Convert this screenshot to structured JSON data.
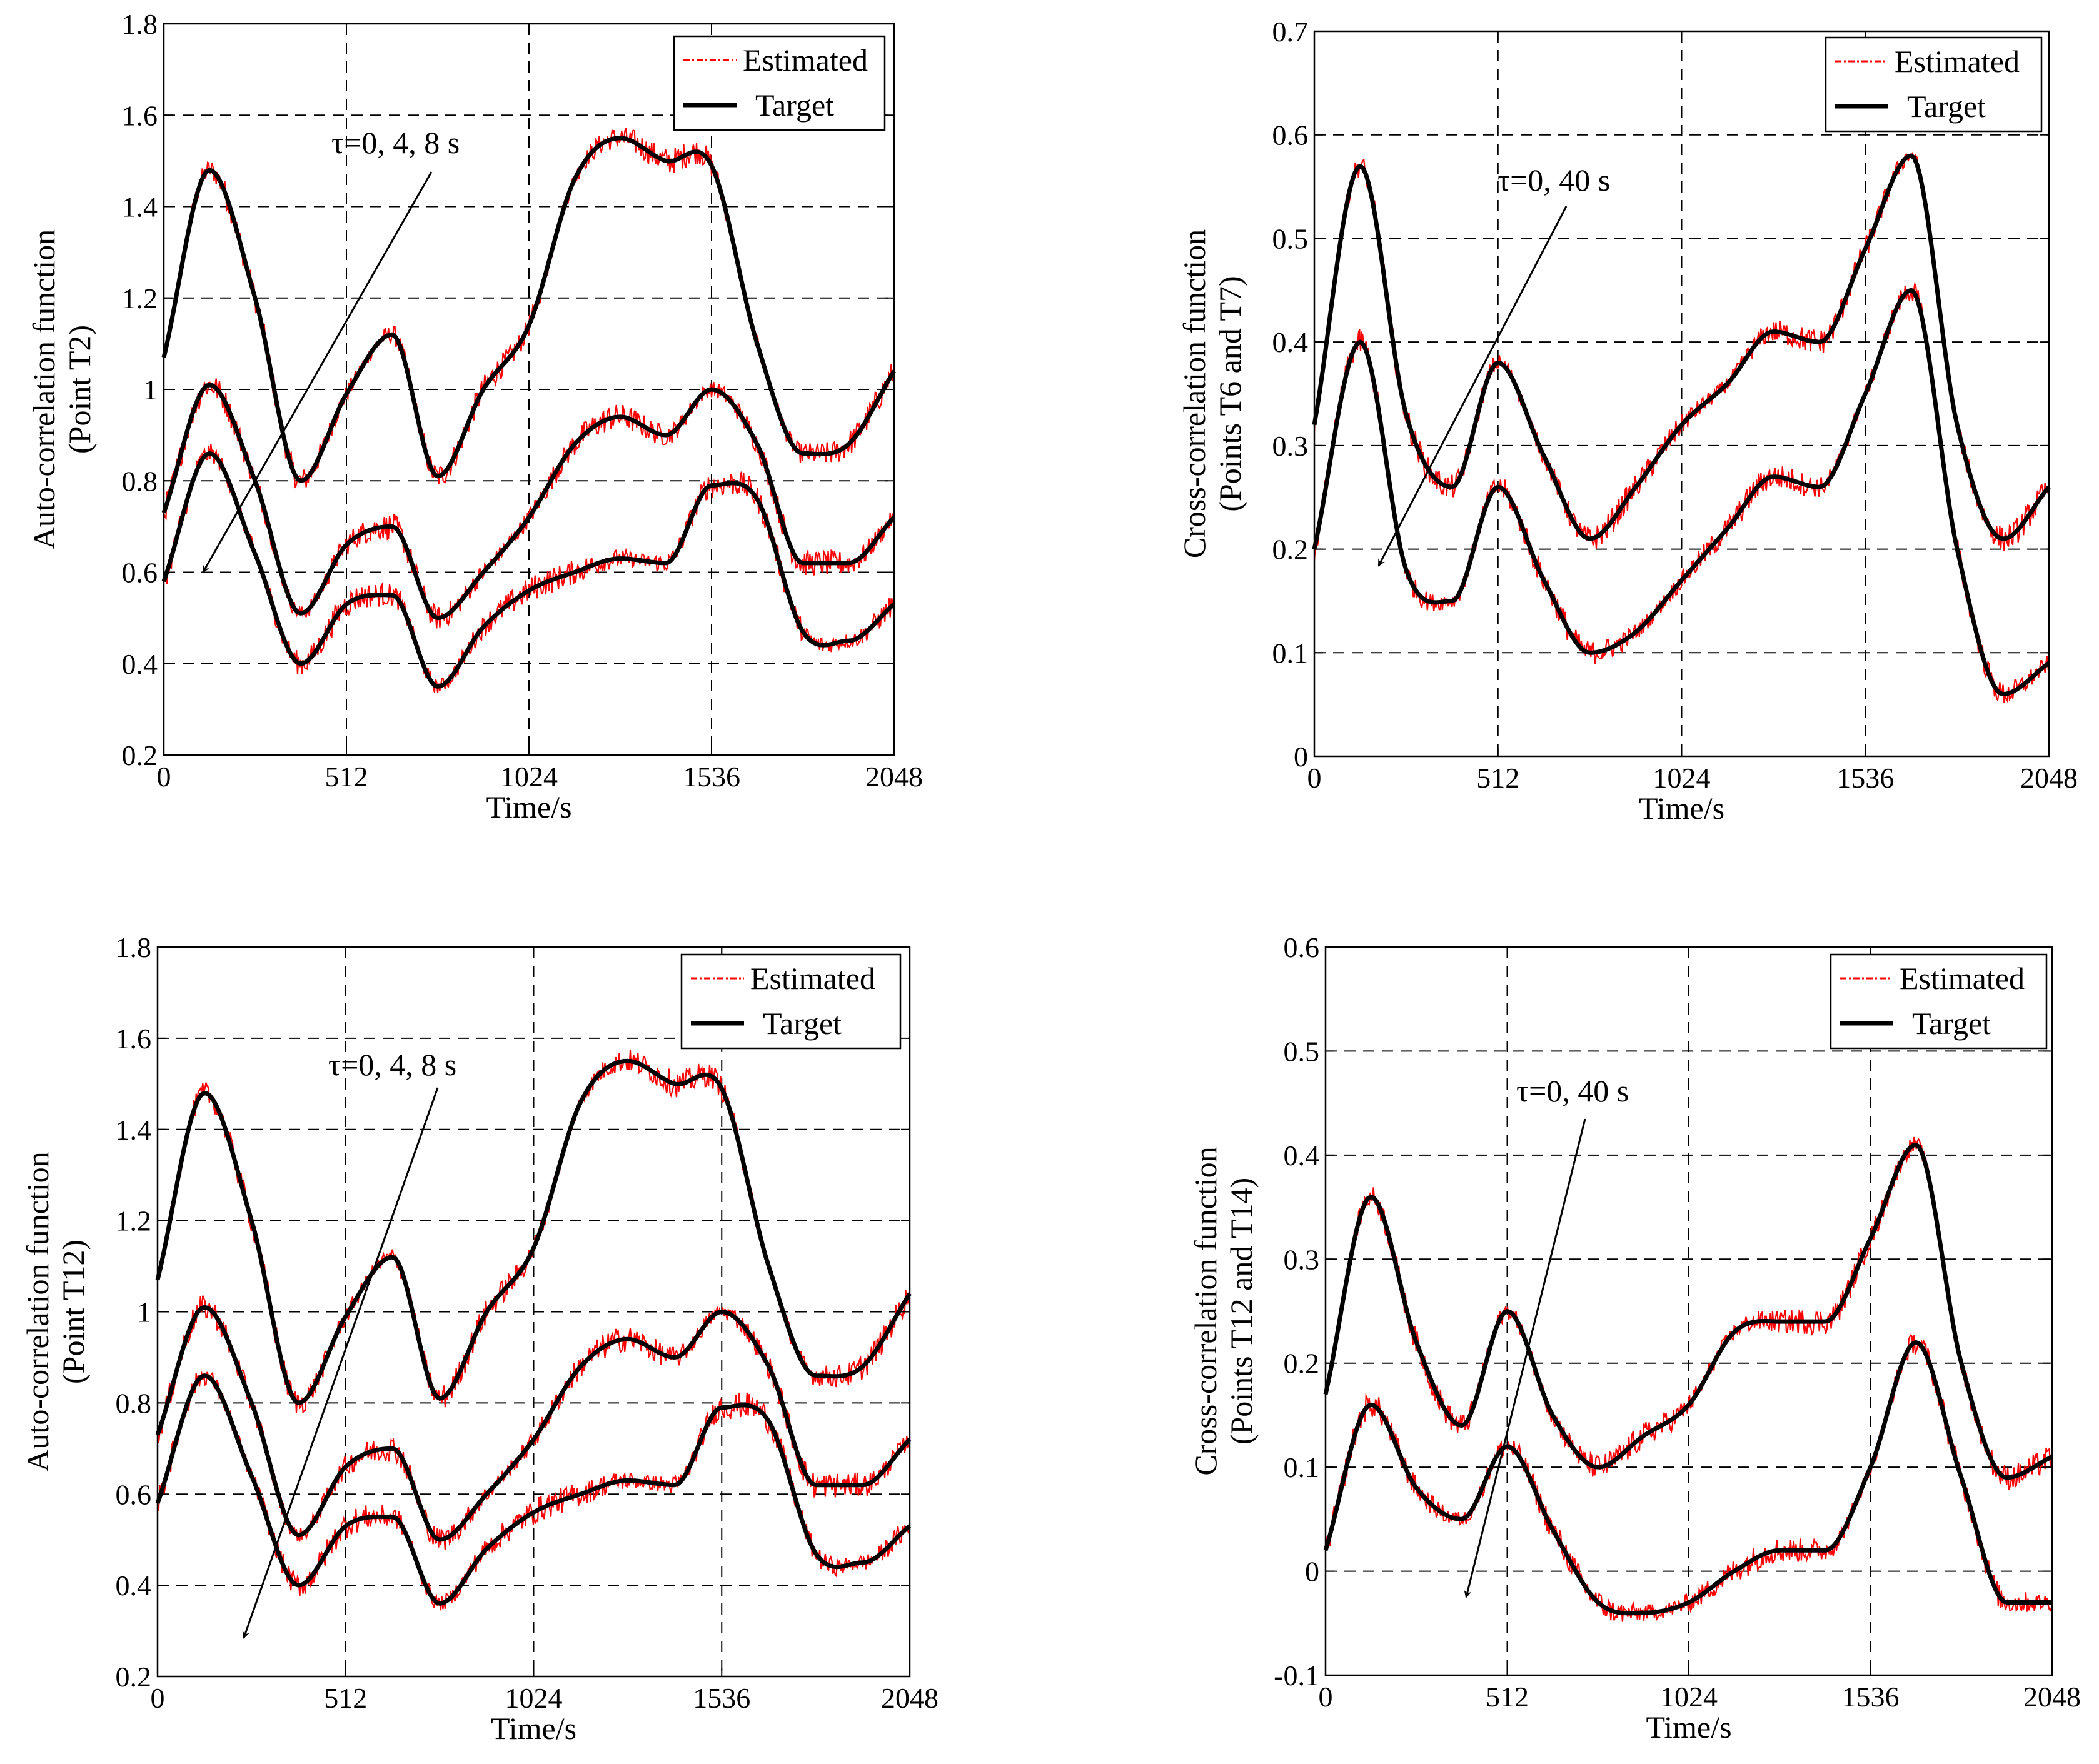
{
  "figure": {
    "colors": {
      "estimated": "#ff0000",
      "target": "#000000",
      "grid": "#000000"
    },
    "legend": {
      "estimated_label": "Estimated",
      "target_label": "Target",
      "placement": "top-right"
    }
  },
  "chart_data": [
    {
      "type": "line",
      "panel": "top-left",
      "xlabel": "Time/s",
      "ylabel_line1": "Auto-correlation function",
      "ylabel_line2": "(Point T2)",
      "xlim": [
        0,
        2048
      ],
      "ylim": [
        0.2,
        1.8
      ],
      "xticks": [
        0,
        512,
        1024,
        1536,
        2048
      ],
      "yticks": [
        0.2,
        0.4,
        0.6,
        0.8,
        1,
        1.2,
        1.4,
        1.6,
        1.8
      ],
      "ytick_labels": [
        "0.2",
        "0.4",
        "0.6",
        "0.8",
        "1",
        "1.2",
        "1.4",
        "1.6",
        "1.8"
      ],
      "grid": true,
      "annotation": "τ=0, 4, 8 s",
      "series": [
        {
          "name": "Target",
          "x": [
            0,
            128,
            256,
            384,
            512,
            640,
            768,
            896,
            1024,
            1152,
            1280,
            1408,
            1536,
            1664,
            1792,
            1920,
            2048
          ],
          "values": [
            1.07,
            1.48,
            1.2,
            0.8,
            0.99,
            1.12,
            0.81,
            1.0,
            1.14,
            1.46,
            1.55,
            1.5,
            1.49,
            1.1,
            0.86,
            0.88,
            1.04
          ]
        },
        {
          "name": "Target",
          "x": [
            0,
            128,
            256,
            384,
            512,
            640,
            768,
            896,
            1024,
            1152,
            1280,
            1408,
            1536,
            1664,
            1792,
            1920,
            2048
          ],
          "values": [
            0.73,
            1.01,
            0.8,
            0.51,
            0.66,
            0.7,
            0.5,
            0.6,
            0.72,
            0.88,
            0.94,
            0.9,
            1.0,
            0.88,
            0.62,
            0.62,
            0.72
          ]
        },
        {
          "name": "Target",
          "x": [
            0,
            128,
            256,
            384,
            512,
            640,
            768,
            896,
            1024,
            1152,
            1280,
            1408,
            1536,
            1664,
            1792,
            1920,
            2048
          ],
          "values": [
            0.58,
            0.86,
            0.64,
            0.4,
            0.53,
            0.55,
            0.35,
            0.48,
            0.56,
            0.6,
            0.63,
            0.62,
            0.79,
            0.76,
            0.47,
            0.45,
            0.53
          ]
        }
      ]
    },
    {
      "type": "line",
      "panel": "top-right",
      "xlabel": "Time/s",
      "ylabel_line1": "Cross-correlation function",
      "ylabel_line2": "(Points T6 and T7)",
      "xlim": [
        0,
        2048
      ],
      "ylim": [
        0,
        0.7
      ],
      "xticks": [
        0,
        512,
        1024,
        1536,
        2048
      ],
      "yticks": [
        0,
        0.1,
        0.2,
        0.3,
        0.4,
        0.5,
        0.6,
        0.7
      ],
      "ytick_labels": [
        "0",
        "0.1",
        "0.2",
        "0.3",
        "0.4",
        "0.5",
        "0.6",
        "0.7"
      ],
      "grid": true,
      "annotation": "τ=0, 40 s",
      "series": [
        {
          "name": "Target",
          "x": [
            0,
            128,
            256,
            384,
            512,
            640,
            768,
            896,
            1024,
            1152,
            1280,
            1408,
            1536,
            1664,
            1792,
            1920,
            2048
          ],
          "values": [
            0.32,
            0.57,
            0.33,
            0.26,
            0.38,
            0.29,
            0.21,
            0.26,
            0.32,
            0.36,
            0.41,
            0.4,
            0.49,
            0.58,
            0.32,
            0.21,
            0.26
          ]
        },
        {
          "name": "Target",
          "x": [
            0,
            128,
            256,
            384,
            512,
            640,
            768,
            896,
            1024,
            1152,
            1280,
            1408,
            1536,
            1664,
            1792,
            1920,
            2048
          ],
          "values": [
            0.2,
            0.4,
            0.18,
            0.15,
            0.26,
            0.17,
            0.1,
            0.12,
            0.17,
            0.22,
            0.27,
            0.26,
            0.35,
            0.45,
            0.2,
            0.06,
            0.09
          ]
        }
      ]
    },
    {
      "type": "line",
      "panel": "bottom-left",
      "xlabel": "Time/s",
      "ylabel_line1": "Auto-correlation function",
      "ylabel_line2": "(Point T12)",
      "xlim": [
        0,
        2048
      ],
      "ylim": [
        0.2,
        1.8
      ],
      "xticks": [
        0,
        512,
        1024,
        1536,
        2048
      ],
      "yticks": [
        0.2,
        0.4,
        0.6,
        0.8,
        1,
        1.2,
        1.4,
        1.6,
        1.8
      ],
      "ytick_labels": [
        "0.2",
        "0.4",
        "0.6",
        "0.8",
        "1",
        "1.2",
        "1.4",
        "1.6",
        "1.8"
      ],
      "grid": true,
      "annotation": "τ=0, 4, 8 s",
      "series": [
        {
          "name": "Target",
          "x": [
            0,
            128,
            256,
            384,
            512,
            640,
            768,
            896,
            1024,
            1152,
            1280,
            1408,
            1536,
            1664,
            1792,
            1920,
            2048
          ],
          "values": [
            1.07,
            1.48,
            1.2,
            0.8,
            0.99,
            1.12,
            0.81,
            1.0,
            1.14,
            1.46,
            1.55,
            1.5,
            1.49,
            1.1,
            0.86,
            0.88,
            1.04
          ]
        },
        {
          "name": "Target",
          "x": [
            0,
            128,
            256,
            384,
            512,
            640,
            768,
            896,
            1024,
            1152,
            1280,
            1408,
            1536,
            1664,
            1792,
            1920,
            2048
          ],
          "values": [
            0.73,
            1.01,
            0.8,
            0.51,
            0.66,
            0.7,
            0.5,
            0.6,
            0.72,
            0.88,
            0.94,
            0.9,
            1.0,
            0.88,
            0.62,
            0.62,
            0.72
          ]
        },
        {
          "name": "Target",
          "x": [
            0,
            128,
            256,
            384,
            512,
            640,
            768,
            896,
            1024,
            1152,
            1280,
            1408,
            1536,
            1664,
            1792,
            1920,
            2048
          ],
          "values": [
            0.58,
            0.86,
            0.64,
            0.4,
            0.53,
            0.55,
            0.36,
            0.48,
            0.56,
            0.6,
            0.63,
            0.62,
            0.79,
            0.76,
            0.47,
            0.45,
            0.53
          ]
        }
      ]
    },
    {
      "type": "line",
      "panel": "bottom-right",
      "xlabel": "Time/s",
      "ylabel_line1": "Cross-correlation function",
      "ylabel_line2": "(Points T12 and T14)",
      "xlim": [
        0,
        2048
      ],
      "ylim": [
        -0.1,
        0.6
      ],
      "xticks": [
        0,
        512,
        1024,
        1536,
        2048
      ],
      "yticks": [
        -0.1,
        0,
        0.1,
        0.2,
        0.3,
        0.4,
        0.5,
        0.6
      ],
      "ytick_labels": [
        "-0.1",
        "0",
        "0.1",
        "0.2",
        "0.3",
        "0.4",
        "0.5",
        "0.6"
      ],
      "grid": true,
      "annotation": "τ=0, 40 s",
      "series": [
        {
          "name": "Target",
          "x": [
            0,
            128,
            256,
            384,
            512,
            640,
            768,
            896,
            1024,
            1152,
            1280,
            1408,
            1536,
            1664,
            1792,
            1920,
            2048
          ],
          "values": [
            0.17,
            0.36,
            0.22,
            0.14,
            0.25,
            0.15,
            0.1,
            0.13,
            0.16,
            0.23,
            0.24,
            0.24,
            0.32,
            0.41,
            0.2,
            0.09,
            0.11
          ]
        },
        {
          "name": "Target",
          "x": [
            0,
            128,
            256,
            384,
            512,
            640,
            768,
            896,
            1024,
            1152,
            1280,
            1408,
            1536,
            1664,
            1792,
            1920,
            2048
          ],
          "values": [
            0.02,
            0.16,
            0.08,
            0.05,
            0.12,
            0.04,
            -0.03,
            -0.04,
            -0.03,
            0.0,
            0.02,
            0.02,
            0.1,
            0.22,
            0.09,
            -0.03,
            -0.03
          ]
        }
      ]
    }
  ]
}
